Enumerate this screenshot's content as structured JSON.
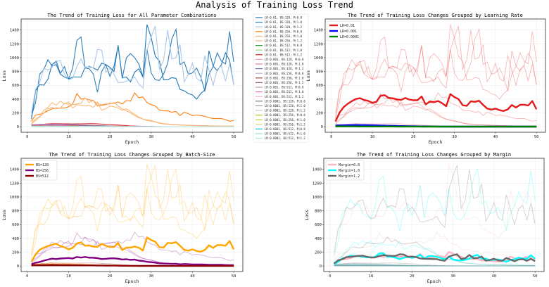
{
  "suptitle": "Analysis of Training Loss Trend",
  "chart_data": [
    {
      "type": "line",
      "title": "The Trend of Training Loss for All Parameter Combinations",
      "xlabel": "Epoch",
      "ylabel": "Loss",
      "xlim": [
        -1.5,
        52.2
      ],
      "ylim": [
        -80,
        1560
      ],
      "xticks": [
        0,
        10,
        20,
        30,
        40,
        50
      ],
      "yticks": [
        0,
        200,
        400,
        600,
        800,
        1000,
        1200,
        1400
      ],
      "grid": true,
      "legend_placement": "outside-right",
      "x_range": [
        1,
        50
      ],
      "series": [
        {
          "name": "LR:0.01, BS:128, M:0.8",
          "lr": "0.01",
          "bs": "128",
          "m": "0.8",
          "color": "#1f77b4",
          "values": [
            110,
            520,
            610,
            600,
            690,
            900,
            950,
            770,
            870,
            690,
            720,
            720,
            720,
            860,
            870,
            850,
            820,
            920,
            900,
            860,
            800,
            1180,
            710,
            720,
            650,
            790,
            840,
            720,
            1480,
            1290,
            1020,
            950,
            680,
            680,
            710,
            700,
            540,
            520,
            480,
            460,
            400,
            480,
            530,
            1100,
            880,
            810,
            900,
            1070,
            960,
            610
          ]
        },
        {
          "name": "LR:0.01, BS:128, M:1.0",
          "lr": "0.01",
          "bs": "128",
          "m": "1.0",
          "color": "#2f7fb8",
          "values": [
            150,
            350,
            760,
            830,
            970,
            880,
            900,
            760,
            720,
            690,
            850,
            1250,
            1300,
            850,
            840,
            760,
            500,
            800,
            900,
            730,
            880,
            1170,
            700,
            1000,
            1060,
            1000,
            910,
            730,
            1120,
            780,
            680,
            670,
            760,
            920,
            1270,
            1410,
            900,
            940,
            760,
            780,
            850,
            720,
            520,
            760,
            870,
            1070,
            950,
            910,
            1380,
            940
          ]
        },
        {
          "name": "LR:0.01, BS:128, M:1.2",
          "lr": "0.01",
          "bs": "128",
          "m": "1.2",
          "color": "#aec7e8",
          "values": [
            200,
            540,
            640,
            850,
            820,
            860,
            940,
            960,
            760,
            680,
            700,
            870,
            980,
            850,
            880,
            850,
            1120,
            1110,
            790,
            850,
            760,
            640,
            640,
            660,
            680,
            720,
            620,
            560,
            1110,
            1300,
            1460,
            830,
            960,
            1400,
            980,
            1000,
            1190,
            650,
            760,
            920,
            700,
            660,
            1030,
            820,
            600,
            830,
            880,
            660,
            910,
            610
          ]
        },
        {
          "name": "LR:0.01, BS:256, M:0.8",
          "lr": "0.01",
          "bs": "256",
          "m": "0.8",
          "color": "#ff7f0e",
          "values": [
            80,
            170,
            180,
            200,
            230,
            260,
            270,
            270,
            270,
            290,
            330,
            480,
            400,
            410,
            390,
            380,
            300,
            310,
            320,
            340,
            340,
            360,
            330,
            380,
            370,
            490,
            420,
            430,
            350,
            320,
            300,
            240,
            230,
            230,
            210,
            220,
            160,
            210,
            190,
            160,
            170,
            160,
            150,
            130,
            120,
            120,
            120,
            100,
            80,
            90
          ]
        },
        {
          "name": "LR:0.01, BS:256, M:1.0",
          "lr": "0.01",
          "bs": "256",
          "m": "1.0",
          "color": "#ffbb78",
          "values": [
            60,
            110,
            150,
            240,
            280,
            350,
            310,
            370,
            330,
            360,
            270,
            320,
            310,
            300,
            310,
            280,
            360,
            240,
            260,
            300,
            290,
            270,
            240,
            260,
            220,
            180,
            140,
            110,
            90,
            80,
            70,
            50,
            40,
            35,
            30,
            28,
            25,
            22,
            20,
            18,
            16,
            15,
            14,
            13,
            12,
            12,
            11,
            10,
            10,
            10
          ]
        },
        {
          "name": "LR:0.01, BS:256, M:1.2",
          "lr": "0.01",
          "bs": "256",
          "m": "1.2",
          "color": "#f5b97f",
          "values": [
            40,
            90,
            140,
            200,
            260,
            280,
            260,
            270,
            340,
            330,
            320,
            330,
            340,
            420,
            350,
            380,
            330,
            320,
            330,
            330,
            350,
            300,
            260,
            230,
            200,
            160,
            130,
            110,
            100,
            90,
            70,
            55,
            45,
            40,
            35,
            30,
            28,
            25,
            22,
            20,
            18,
            16,
            15,
            14,
            13,
            12,
            11,
            10,
            10,
            10
          ]
        },
        {
          "name": "LR:0.01, BS:512, M:0.8",
          "lr": "0.01",
          "bs": "512",
          "m": "0.8",
          "color": "#2ca02c",
          "values": [
            20,
            30,
            20,
            10,
            5,
            2,
            1,
            1,
            1,
            1,
            1
          ]
        },
        {
          "name": "LR:0.01, BS:512, M:1.0",
          "lr": "0.01",
          "bs": "512",
          "m": "1.0",
          "color": "#98df8a",
          "values": [
            10,
            15,
            10,
            5,
            2,
            1,
            1,
            0,
            0,
            0,
            0
          ]
        },
        {
          "name": "LR:0.01, BS:512, M:1.2",
          "lr": "0.01",
          "bs": "512",
          "m": "1.2",
          "color": "#d62728",
          "values": [
            25,
            45,
            40,
            45,
            30,
            10,
            3,
            1,
            1,
            1,
            1
          ]
        },
        {
          "name": "LR:0.001, BS:128, M:0.8",
          "lr": "0.001",
          "bs": "128",
          "m": "0.8",
          "color": "#ff9896",
          "values": [
            30,
            40,
            30,
            20,
            10,
            5,
            2,
            1,
            1,
            1,
            1
          ]
        },
        {
          "name": "LR:0.001, BS:128, M:1.0",
          "lr": "0.001",
          "bs": "128",
          "m": "1.0",
          "color": "#e377c2",
          "values": [
            20,
            30,
            25,
            15,
            8,
            4,
            2,
            1,
            1,
            1,
            1
          ]
        },
        {
          "name": "LR:0.001, BS:128, M:1.2",
          "lr": "0.001",
          "bs": "128",
          "m": "1.2",
          "color": "#9467bd",
          "values": [
            25,
            35,
            28,
            18,
            9,
            4,
            2,
            1,
            1,
            1,
            1
          ]
        },
        {
          "name": "LR:0.001, BS:256, M:0.8",
          "lr": "0.001",
          "bs": "256",
          "m": "0.8",
          "color": "#c5b0d5",
          "values": [
            15,
            20,
            15,
            10,
            5,
            3,
            1,
            1,
            1,
            1,
            1
          ]
        },
        {
          "name": "LR:0.001, BS:256, M:1.0",
          "lr": "0.001",
          "bs": "256",
          "m": "1.0",
          "color": "#8c564b",
          "values": [
            12,
            18,
            14,
            9,
            5,
            2,
            1,
            1,
            1,
            1,
            1
          ]
        },
        {
          "name": "LR:0.001, BS:256, M:1.2",
          "lr": "0.001",
          "bs": "256",
          "m": "1.2",
          "color": "#a0685c",
          "values": [
            14,
            19,
            15,
            9,
            4,
            2,
            1,
            1,
            1,
            1,
            1
          ]
        },
        {
          "name": "LR:0.001, BS:512, M:0.8",
          "lr": "0.001",
          "bs": "512",
          "m": "0.8",
          "color": "#c49c94",
          "values": [
            8,
            10,
            8,
            5,
            3,
            2,
            1,
            1,
            1,
            1,
            1
          ]
        },
        {
          "name": "LR:0.001, BS:512, M:1.0",
          "lr": "0.001",
          "bs": "512",
          "m": "1.0",
          "color": "#e377c2",
          "values": [
            7,
            9,
            7,
            5,
            3,
            1,
            1,
            1,
            1,
            1,
            1
          ]
        },
        {
          "name": "LR:0.001, BS:512, M:1.2",
          "lr": "0.001",
          "bs": "512",
          "m": "1.2",
          "color": "#f7b6d2",
          "values": [
            9,
            11,
            8,
            5,
            3,
            2,
            1,
            1,
            1,
            1,
            1
          ]
        },
        {
          "name": "LR:0.0001, BS:128, M:0.8",
          "lr": "0.0001",
          "bs": "128",
          "m": "0.8",
          "color": "#7f7f7f",
          "values": [
            6,
            6,
            5,
            4,
            3,
            2,
            2,
            1,
            1,
            1,
            1
          ]
        },
        {
          "name": "LR:0.0001, BS:128, M:1.0",
          "lr": "0.0001",
          "bs": "128",
          "m": "1.0",
          "color": "#9a9a9a",
          "values": [
            5,
            5,
            4,
            4,
            3,
            2,
            2,
            1,
            1,
            1,
            1
          ]
        },
        {
          "name": "LR:0.0001, BS:128, M:1.2",
          "lr": "0.0001",
          "bs": "128",
          "m": "1.2",
          "color": "#c7c7c7",
          "values": [
            6,
            5,
            5,
            4,
            3,
            2,
            1,
            1,
            1,
            1,
            1
          ]
        },
        {
          "name": "LR:0.0001, BS:256, M:0.8",
          "lr": "0.0001",
          "bs": "256",
          "m": "0.8",
          "color": "#bcbd22",
          "values": [
            4,
            4,
            4,
            3,
            2,
            2,
            1,
            1,
            1,
            1,
            1
          ]
        },
        {
          "name": "LR:0.0001, BS:256, M:1.0",
          "lr": "0.0001",
          "bs": "256",
          "m": "1.0",
          "color": "#c8c83a",
          "values": [
            4,
            4,
            3,
            3,
            2,
            1,
            1,
            1,
            1,
            1,
            1
          ]
        },
        {
          "name": "LR:0.0001, BS:256, M:1.2",
          "lr": "0.0001",
          "bs": "256",
          "m": "1.2",
          "color": "#dbdb8d",
          "values": [
            5,
            4,
            4,
            3,
            2,
            1,
            1,
            1,
            1,
            1,
            1
          ]
        },
        {
          "name": "LR:0.0001, BS:512, M:0.8",
          "lr": "0.0001",
          "bs": "512",
          "m": "0.8",
          "color": "#17becf",
          "values": [
            3,
            3,
            3,
            2,
            2,
            1,
            1,
            1,
            1,
            1,
            1
          ]
        },
        {
          "name": "LR:0.0001, BS:512, M:1.0",
          "lr": "0.0001",
          "bs": "512",
          "m": "1.0",
          "color": "#9edae5",
          "values": [
            3,
            3,
            2,
            2,
            1,
            1,
            1,
            1,
            1,
            1,
            1
          ]
        },
        {
          "name": "LR:0.0001, BS:512, M:1.2",
          "lr": "0.0001",
          "bs": "512",
          "m": "1.2",
          "color": "#b5e3ea",
          "values": [
            3,
            3,
            2,
            2,
            1,
            1,
            1,
            1,
            1,
            1,
            1
          ]
        }
      ]
    },
    {
      "type": "line",
      "title": "The Trend of Training Loss Changes Grouped by Learning Rate",
      "xlabel": "Epoch",
      "ylabel": "Loss",
      "group_by": "lr",
      "legend_placement": "top-left",
      "groups": [
        {
          "key": "0.01",
          "label": "LR=0.01",
          "color": "#e41a1c"
        },
        {
          "key": "0.001",
          "label": "LR=0.001",
          "color": "#0000ff"
        },
        {
          "key": "0.0001",
          "label": "LR=0.0001",
          "color": "#008000"
        }
      ]
    },
    {
      "type": "line",
      "title": "The Trend of Training Loss Changes Grouped by Batch-Size",
      "xlabel": "Epoch",
      "ylabel": "Loss",
      "group_by": "bs",
      "legend_placement": "top-left",
      "groups": [
        {
          "key": "128",
          "label": "BS=128",
          "color": "#ffa500"
        },
        {
          "key": "256",
          "label": "BS=256",
          "color": "#800080"
        },
        {
          "key": "512",
          "label": "BS=512",
          "color": "#8b0000"
        }
      ]
    },
    {
      "type": "line",
      "title": "The Trend of Training Loss Changes Grouped by Margin",
      "xlabel": "Epoch",
      "ylabel": "Loss",
      "group_by": "m",
      "legend_placement": "top-left",
      "groups": [
        {
          "key": "0.8",
          "label": "Margin=0.8",
          "color": "#ffb6c1"
        },
        {
          "key": "1.0",
          "label": "Margin=1.0",
          "color": "#00ffff"
        },
        {
          "key": "1.2",
          "label": "Margin=1.2",
          "color": "#696969"
        }
      ]
    }
  ]
}
